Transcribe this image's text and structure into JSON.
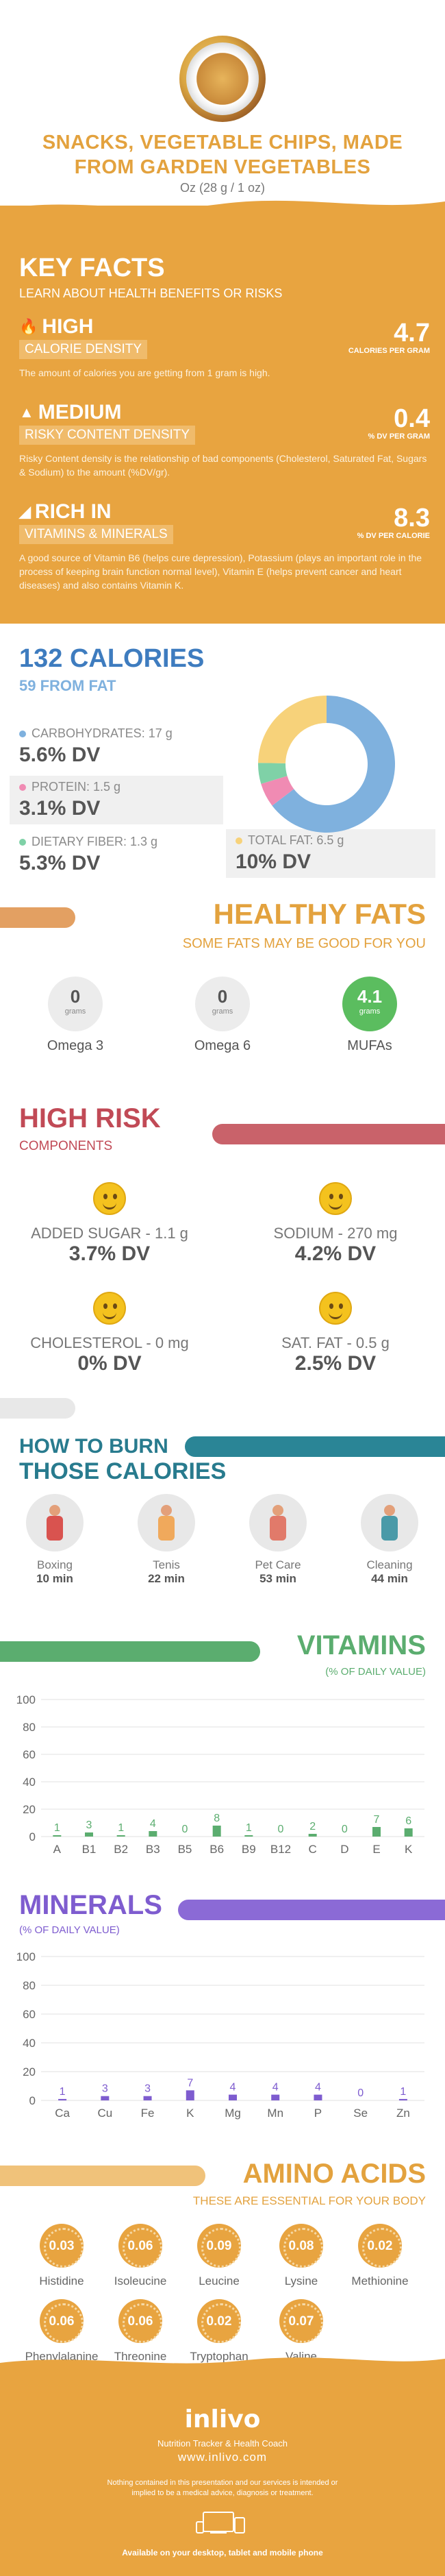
{
  "header": {
    "title": "SNACKS, VEGETABLE CHIPS, MADE FROM GARDEN VEGETABLES",
    "serving": "Oz (28 g / 1 oz)"
  },
  "key_facts": {
    "title": "KEY FACTS",
    "subtitle": "LEARN ABOUT HEALTH BENEFITS OR RISKS",
    "items": [
      {
        "level": "HIGH",
        "category": "CALORIE DENSITY",
        "value": "4.7",
        "unit": "CALORIES PER GRAM",
        "desc": "The amount of calories you are getting from 1 gram is high."
      },
      {
        "level": "MEDIUM",
        "category": "RISKY CONTENT DENSITY",
        "value": "0.4",
        "unit": "% DV PER GRAM",
        "desc": "Risky Content density is the relationship of bad components (Cholesterol, Saturated Fat, Sugars & Sodium) to the amount (%DV/gr)."
      },
      {
        "level": "RICH  IN",
        "category": "VITAMINS & MINERALS",
        "value": "8.3",
        "unit": "% DV PER CALORIE",
        "desc": "A good source of Vitamin B6 (helps cure depression), Potassium (plays an important role in the process of keeping brain function normal level), Vitamin E (helps prevent cancer and heart diseases) and also contains Vitamin K."
      }
    ]
  },
  "calories": {
    "title": "132 CALORIES",
    "from_fat": "59 FROM FAT",
    "nutrients": [
      {
        "name": "CARBOHYDRATES: 17 g",
        "dv": "5.6% DV",
        "color": "#7fb1de"
      },
      {
        "name": "PROTEIN: 1.5 g",
        "dv": "3.1% DV",
        "color": "#f08bb3"
      },
      {
        "name": "DIETARY FIBER: 1.3 g",
        "dv": "5.3% DV",
        "color": "#7fd1a7"
      },
      {
        "name": "TOTAL FAT: 6.5 g",
        "dv": "10% DV",
        "color": "#f7d27a"
      }
    ],
    "donut": [
      {
        "name": "CARBOHYDRATES",
        "value": 17,
        "color": "#7fb1de"
      },
      {
        "name": "PROTEIN",
        "value": 1.5,
        "color": "#f08bb3"
      },
      {
        "name": "DIETARY FIBER",
        "value": 1.3,
        "color": "#7fd1a7"
      },
      {
        "name": "TOTAL FAT",
        "value": 6.5,
        "color": "#f7d27a"
      }
    ]
  },
  "healthy_fats": {
    "title": "HEALTHY FATS",
    "subtitle": "SOME FATS MAY BE GOOD FOR YOU",
    "items": [
      {
        "value": "0",
        "unit": "grams",
        "label": "Omega 3"
      },
      {
        "value": "0",
        "unit": "grams",
        "label": "Omega 6"
      },
      {
        "value": "4.1",
        "unit": "grams",
        "label": "MUFAs"
      }
    ]
  },
  "high_risk": {
    "title": "HIGH RISK",
    "subtitle": "COMPONENTS",
    "items": [
      {
        "name": "ADDED SUGAR - 1.1 g",
        "dv": "3.7% DV"
      },
      {
        "name": "SODIUM - 270 mg",
        "dv": "4.2% DV"
      },
      {
        "name": "CHOLESTEROL - 0 mg",
        "dv": "0% DV"
      },
      {
        "name": "SAT. FAT - 0.5 g",
        "dv": "2.5% DV"
      }
    ]
  },
  "burn": {
    "title1": "HOW TO BURN",
    "title2": "THOSE CALORIES",
    "activities": [
      {
        "name": "Boxing",
        "minutes": "10 min",
        "icon": "boxing-icon",
        "color": "#d9534f"
      },
      {
        "name": "Tenis",
        "minutes": "22 min",
        "icon": "tennis-icon",
        "color": "#f0a95c"
      },
      {
        "name": "Pet Care",
        "minutes": "53 min",
        "icon": "pet-care-icon",
        "color": "#e17a6a"
      },
      {
        "name": "Cleaning",
        "minutes": "44 min",
        "icon": "cleaning-icon",
        "color": "#4a9aa8"
      }
    ]
  },
  "vitamins": {
    "title": "VITAMINS",
    "subtitle": "(% OF DAILY VALUE)",
    "color": "#5bad6f",
    "chart_data": {
      "type": "bar",
      "categories": [
        "A",
        "B1",
        "B2",
        "B3",
        "B5",
        "B6",
        "B9",
        "B12",
        "C",
        "D",
        "E",
        "K"
      ],
      "values": [
        1,
        3,
        1,
        4,
        0,
        8,
        1,
        0,
        2,
        0,
        7,
        6
      ],
      "ylim": [
        0,
        100
      ],
      "yticks": [
        0,
        20,
        40,
        60,
        80,
        100
      ]
    }
  },
  "minerals": {
    "title": "MINERALS",
    "subtitle": "(% OF DAILY VALUE)",
    "color": "#7e5ccf",
    "chart_data": {
      "type": "bar",
      "categories": [
        "Ca",
        "Cu",
        "Fe",
        "K",
        "Mg",
        "Mn",
        "P",
        "Se",
        "Zn"
      ],
      "values": [
        1,
        3,
        3,
        7,
        4,
        4,
        4,
        0,
        1
      ],
      "ylim": [
        0,
        100
      ],
      "yticks": [
        0,
        20,
        40,
        60,
        80,
        100
      ]
    }
  },
  "amino": {
    "title": "AMINO ACIDS",
    "subtitle": "THESE ARE ESSENTIAL FOR YOUR BODY",
    "items": [
      {
        "value": "0.03",
        "name": "Histidine"
      },
      {
        "value": "0.06",
        "name": "Isoleucine"
      },
      {
        "value": "0.09",
        "name": "Leucine"
      },
      {
        "value": "0.08",
        "name": "Lysine"
      },
      {
        "value": "0.02",
        "name": "Methionine"
      },
      {
        "value": "0.06",
        "name": "Phenylalanine"
      },
      {
        "value": "0.06",
        "name": "Threonine"
      },
      {
        "value": "0.02",
        "name": "Tryptophan"
      },
      {
        "value": "0.07",
        "name": "Valine"
      }
    ]
  },
  "footer": {
    "logo": "inlivo",
    "tagline": "Nutrition Tracker & Health Coach",
    "url": "www.inlivo.com",
    "disclaimer": "Nothing contained in this presentation and our services is intended or implied to be a medical advice, diagnosis or treatment.",
    "available": "Available on your desktop, tablet and mobile phone"
  }
}
